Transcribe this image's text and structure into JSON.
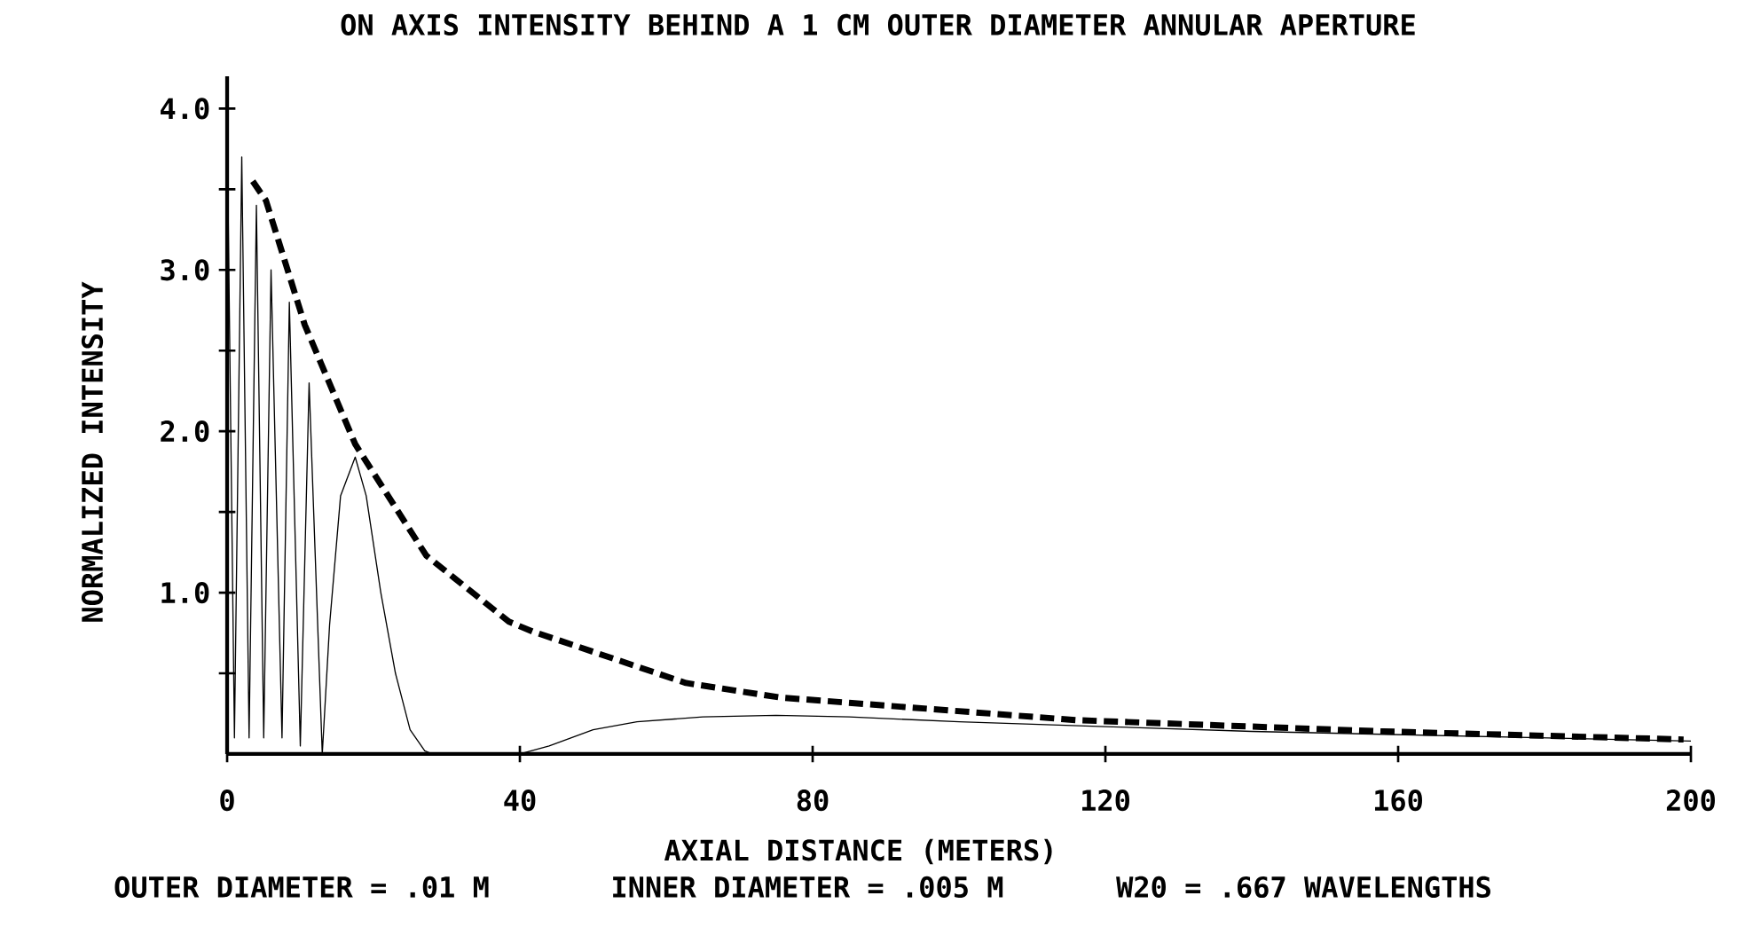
{
  "chart_data": {
    "type": "line",
    "title": "ON AXIS INTENSITY BEHIND A 1 CM OUTER DIAMETER ANNULAR APERTURE",
    "xlabel": "AXIAL DISTANCE (METERS)",
    "ylabel": "NORMALIZED INTENSITY",
    "xlim": [
      0,
      200
    ],
    "ylim": [
      0,
      4.2
    ],
    "xticks": [
      0,
      40,
      80,
      120,
      160,
      200
    ],
    "yticks": [
      {
        "value": 0.5,
        "label": null
      },
      {
        "value": 1,
        "label": "1.0"
      },
      {
        "value": 1.5,
        "label": null
      },
      {
        "value": 2,
        "label": "2.0"
      },
      {
        "value": 2.5,
        "label": null
      },
      {
        "value": 3,
        "label": "3.0"
      },
      {
        "value": 3.5,
        "label": null
      },
      {
        "value": 4,
        "label": "4.0"
      }
    ],
    "annotations": [
      "OUTER DIAMETER = .01 M",
      "INNER DIAMETER = .005 M",
      "W20 = .667 WAVELENGTHS"
    ],
    "series": [
      {
        "color": "#000000",
        "line_style": "dashed",
        "x": [
          3.5,
          5.3,
          10.6,
          17.5,
          27.2,
          38.5,
          41.7,
          62.7,
          75.6,
          116,
          158,
          199
        ],
        "values": [
          3.55,
          3.43,
          2.66,
          1.92,
          1.23,
          0.82,
          0.76,
          0.44,
          0.35,
          0.21,
          0.14,
          0.09
        ]
      },
      {
        "color": "#000000",
        "line_style": "solid",
        "x": [
          0,
          1,
          2,
          3,
          4,
          5,
          6,
          7.5,
          8.5,
          10,
          11.2,
          13,
          14,
          15.5,
          17.5,
          19,
          21,
          23,
          25,
          27,
          28,
          40,
          44,
          50,
          56,
          65,
          75,
          85,
          100,
          120,
          140,
          160,
          180,
          200
        ],
        "values": [
          3.9,
          0.1,
          3.7,
          0.1,
          3.4,
          0.1,
          3.0,
          0.1,
          2.8,
          0.05,
          2.3,
          0,
          0.8,
          1.6,
          1.84,
          1.6,
          1.0,
          0.5,
          0.15,
          0.02,
          0,
          0,
          0.05,
          0.15,
          0.2,
          0.23,
          0.24,
          0.23,
          0.2,
          0.17,
          0.14,
          0.12,
          0.1,
          0.08
        ]
      }
    ]
  }
}
